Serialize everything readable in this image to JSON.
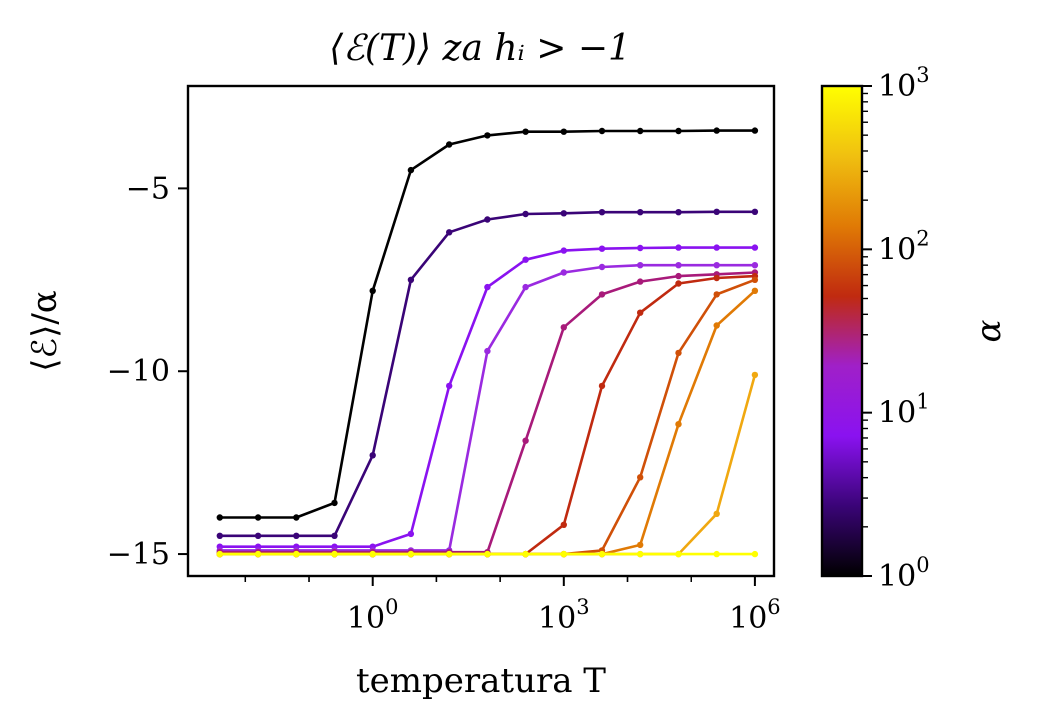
{
  "chart_data": {
    "type": "line",
    "title": "⟨ℰ(T)⟩ za hᵢ > −1",
    "xlabel": "temperatura T",
    "ylabel": "⟨ℰ⟩/α",
    "xscale": "log",
    "xlim_log10": [
      -2.9,
      6.3
    ],
    "ylim": [
      -15.6,
      -2.2
    ],
    "xticks": [
      {
        "exp": 0,
        "base": "10",
        "sup": "0"
      },
      {
        "exp": 3,
        "base": "10",
        "sup": "3"
      },
      {
        "exp": 6,
        "base": "10",
        "sup": "6"
      }
    ],
    "yticks": [
      {
        "value": -5,
        "label": "−5"
      },
      {
        "value": -10,
        "label": "−10"
      },
      {
        "value": -15,
        "label": "−15"
      }
    ],
    "x_log10": [
      -2.4,
      -1.8,
      -1.2,
      -0.6,
      0.0,
      0.6,
      1.2,
      1.8,
      2.4,
      3.0,
      3.6,
      4.2,
      4.8,
      5.4,
      6.0
    ],
    "series": [
      {
        "name": "α=1",
        "color": "#000000",
        "values": [
          -14.0,
          -14.0,
          -14.0,
          -13.6,
          -7.8,
          -4.5,
          -3.8,
          -3.55,
          -3.45,
          -3.45,
          -3.43,
          -3.43,
          -3.43,
          -3.42,
          -3.42
        ]
      },
      {
        "name": "α=2",
        "color": "#3a0477",
        "values": [
          -14.5,
          -14.5,
          -14.5,
          -14.5,
          -12.3,
          -7.5,
          -6.2,
          -5.85,
          -5.7,
          -5.68,
          -5.65,
          -5.65,
          -5.65,
          -5.64,
          -5.64
        ]
      },
      {
        "name": "α=5",
        "color": "#8a12f0",
        "values": [
          -14.8,
          -14.8,
          -14.8,
          -14.8,
          -14.8,
          -14.45,
          -10.4,
          -7.7,
          -6.95,
          -6.7,
          -6.65,
          -6.63,
          -6.62,
          -6.62,
          -6.62
        ]
      },
      {
        "name": "α=10",
        "color": "#9a2ae0",
        "values": [
          -14.9,
          -14.9,
          -14.9,
          -14.9,
          -14.9,
          -14.9,
          -14.9,
          -9.45,
          -7.7,
          -7.3,
          -7.15,
          -7.1,
          -7.1,
          -7.1,
          -7.1
        ]
      },
      {
        "name": "α=20",
        "color": "#a81a7a",
        "values": [
          -14.95,
          -14.95,
          -14.95,
          -14.95,
          -14.95,
          -14.95,
          -14.95,
          -14.95,
          -11.9,
          -8.8,
          -7.9,
          -7.55,
          -7.4,
          -7.35,
          -7.3
        ]
      },
      {
        "name": "α=40",
        "color": "#c02a10",
        "values": [
          -15.0,
          -15.0,
          -15.0,
          -15.0,
          -15.0,
          -15.0,
          -15.0,
          -15.0,
          -15.0,
          -14.2,
          -10.4,
          -8.4,
          -7.6,
          -7.45,
          -7.4
        ]
      },
      {
        "name": "α=80",
        "color": "#d05008",
        "values": [
          -15.0,
          -15.0,
          -15.0,
          -15.0,
          -15.0,
          -15.0,
          -15.0,
          -15.0,
          -15.0,
          -15.0,
          -14.9,
          -12.9,
          -9.5,
          -7.9,
          -7.5
        ]
      },
      {
        "name": "α=150",
        "color": "#e07a05",
        "values": [
          -15.0,
          -15.0,
          -15.0,
          -15.0,
          -15.0,
          -15.0,
          -15.0,
          -15.0,
          -15.0,
          -15.0,
          -15.0,
          -14.75,
          -11.45,
          -8.75,
          -7.8
        ]
      },
      {
        "name": "α=300",
        "color": "#f0a810",
        "values": [
          -15.0,
          -15.0,
          -15.0,
          -15.0,
          -15.0,
          -15.0,
          -15.0,
          -15.0,
          -15.0,
          -15.0,
          -15.0,
          -15.0,
          -15.0,
          -13.9,
          -10.1
        ]
      },
      {
        "name": "α=1000",
        "color": "#ffff00",
        "values": [
          -15.0,
          -15.0,
          -15.0,
          -15.0,
          -15.0,
          -15.0,
          -15.0,
          -15.0,
          -15.0,
          -15.0,
          -15.0,
          -15.0,
          -15.0,
          -15.0,
          -15.0
        ]
      }
    ],
    "colorbar": {
      "label": "α",
      "scale": "log",
      "ticks": [
        {
          "exp": 0,
          "base": "10",
          "sup": "0"
        },
        {
          "exp": 1,
          "base": "10",
          "sup": "1"
        },
        {
          "exp": 2,
          "base": "10",
          "sup": "2"
        },
        {
          "exp": 3,
          "base": "10",
          "sup": "3"
        }
      ],
      "colormap": [
        "#000000",
        "#3a0477",
        "#8a12f0",
        "#a020c8",
        "#c02a10",
        "#e07a05",
        "#f0c010",
        "#ffff00"
      ]
    }
  }
}
